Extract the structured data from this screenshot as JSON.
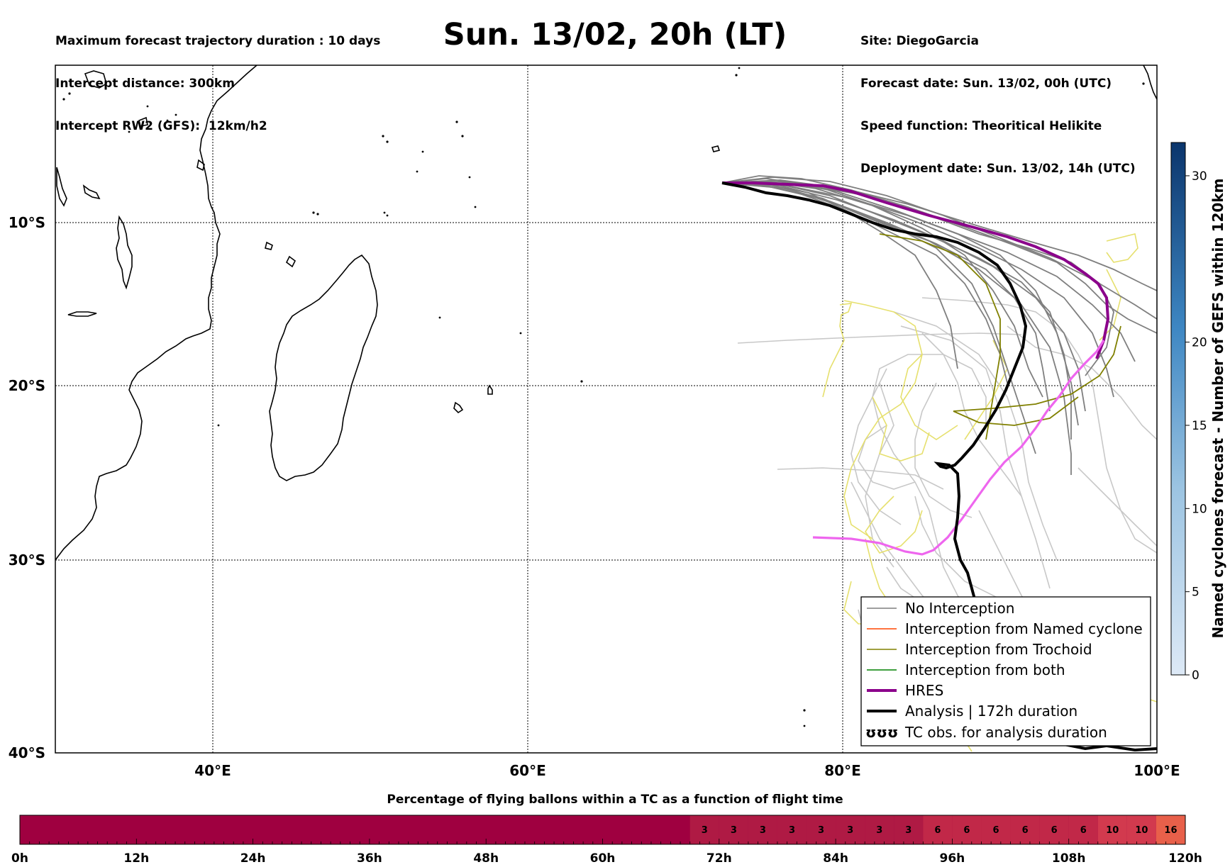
{
  "header": {
    "left": [
      "Maximum forecast trajectory duration : 10 days",
      "Intercept distance: 300km",
      "Intercept RW2 (GFS):  12km/h2"
    ],
    "right": [
      "Site: DiegoGarcia",
      "Forecast date: Sun. 13/02, 00h (UTC)",
      "Speed function: Theoritical Helikite",
      "Deployment date: Sun. 13/02, 14h (UTC)"
    ],
    "title": "Sun. 13/02, 20h (LT)"
  },
  "map": {
    "lon_ticks": [
      "40°E",
      "60°E",
      "80°E",
      "100°E"
    ],
    "lat_ticks": [
      "10°S",
      "20°S",
      "30°S",
      "40°S"
    ],
    "extent": {
      "lon": [
        30,
        100
      ],
      "lat": [
        -40,
        -1
      ]
    }
  },
  "legend": {
    "items": [
      {
        "label": "No Interception",
        "color": "#7f7f7f"
      },
      {
        "label": "Interception from Named cyclone",
        "color": "#ff4500"
      },
      {
        "label": "Interception from Trochoid",
        "color": "#808000"
      },
      {
        "label": "Interception from both",
        "color": "#008000"
      },
      {
        "label": "HRES",
        "color": "#8b008b"
      },
      {
        "label": "Analysis | 172h duration",
        "color": "#000000"
      },
      {
        "label": "TC obs. for analysis duration",
        "color": "#000000"
      }
    ],
    "tc_symbol": "ʊʊʊ"
  },
  "colorbar_right": {
    "label": "Named cyclones forecast - Number of GEFS within 120km",
    "ticks": [
      "0",
      "5",
      "10",
      "15",
      "20",
      "30"
    ],
    "tick_values": [
      0,
      5,
      10,
      15,
      20,
      30
    ],
    "range": [
      0,
      32
    ]
  },
  "time_bar": {
    "title": "Percentage of flying ballons within a TC as a function of flight time",
    "tick_labels": [
      "0h",
      "12h",
      "24h",
      "36h",
      "48h",
      "60h",
      "72h",
      "84h",
      "96h",
      "108h",
      "120h"
    ],
    "cell_values": [
      "3",
      "3",
      "3",
      "3",
      "3",
      "3",
      "3",
      "3",
      "6",
      "6",
      "6",
      "6",
      "6",
      "6",
      "10",
      "10",
      "16"
    ],
    "first_labeled_hour": 69
  }
}
